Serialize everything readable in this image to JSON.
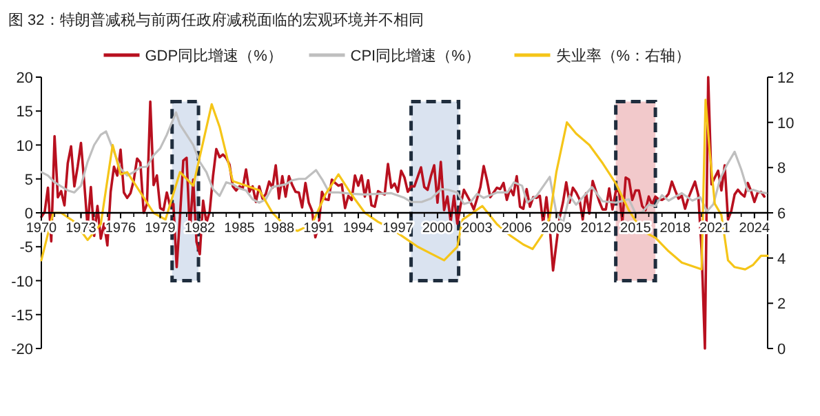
{
  "chart_data": {
    "type": "line",
    "title": "图 32：特朗普减税与前两任政府减税面临的宏观环境并不相同",
    "xlim": [
      1970,
      2025
    ],
    "xticks": [
      1970,
      1973,
      1976,
      1979,
      1982,
      1985,
      1988,
      1991,
      1994,
      1997,
      2000,
      2003,
      2006,
      2009,
      2012,
      2015,
      2018,
      2021,
      2024
    ],
    "ylim": [
      -20,
      20
    ],
    "yticks": [
      -20,
      -15,
      -10,
      -5,
      0,
      5,
      10,
      15,
      20
    ],
    "y2lim": [
      0,
      12
    ],
    "y2ticks": [
      0,
      2,
      4,
      6,
      8,
      10,
      12
    ],
    "legend": "top",
    "marker": "none",
    "line_style": "solid",
    "bands": [
      {
        "axis": "x",
        "from": 1979.9,
        "to": 1981.9,
        "color": "#dae3f0"
      },
      {
        "axis": "x",
        "from": 1998.0,
        "to": 2001.6,
        "color": "#dae3f0"
      },
      {
        "axis": "x",
        "from": 2013.5,
        "to": 2016.5,
        "color": "#f2c9cb"
      }
    ],
    "series": [
      {
        "name": "GDP同比增速（%）",
        "color": "#b8101f",
        "x": [
          1970,
          1970.25,
          1970.5,
          1970.75,
          1971,
          1971.25,
          1971.5,
          1971.75,
          1972,
          1972.25,
          1972.5,
          1972.75,
          1973,
          1973.25,
          1973.5,
          1973.75,
          1974,
          1974.25,
          1974.5,
          1974.75,
          1975,
          1975.25,
          1975.5,
          1975.75,
          1976,
          1976.25,
          1976.5,
          1976.75,
          1977,
          1977.25,
          1977.5,
          1977.75,
          1978,
          1978.25,
          1978.5,
          1978.75,
          1979,
          1979.25,
          1979.5,
          1979.75,
          1980,
          1980.25,
          1980.5,
          1980.75,
          1981,
          1981.25,
          1981.5,
          1981.75,
          1982,
          1982.25,
          1982.5,
          1982.75,
          1983,
          1983.25,
          1983.5,
          1983.75,
          1984,
          1984.25,
          1984.5,
          1984.75,
          1985,
          1985.25,
          1985.5,
          1985.75,
          1986,
          1986.25,
          1986.5,
          1986.75,
          1987,
          1987.25,
          1987.5,
          1987.75,
          1988,
          1988.25,
          1988.5,
          1988.75,
          1989,
          1989.25,
          1989.5,
          1989.75,
          1990,
          1990.25,
          1990.5,
          1990.75,
          1991,
          1991.25,
          1991.5,
          1991.75,
          1992,
          1992.25,
          1992.5,
          1992.75,
          1993,
          1993.25,
          1993.5,
          1993.75,
          1994,
          1994.25,
          1994.5,
          1994.75,
          1995,
          1995.25,
          1995.5,
          1995.75,
          1996,
          1996.25,
          1996.5,
          1996.75,
          1997,
          1997.25,
          1997.5,
          1997.75,
          1998,
          1998.25,
          1998.5,
          1998.75,
          1999,
          1999.25,
          1999.5,
          1999.75,
          2000,
          2000.25,
          2000.5,
          2000.75,
          2001,
          2001.25,
          2001.5,
          2001.75,
          2002,
          2002.25,
          2002.5,
          2002.75,
          2003,
          2003.25,
          2003.5,
          2003.75,
          2004,
          2004.25,
          2004.5,
          2004.75,
          2005,
          2005.25,
          2005.5,
          2005.75,
          2006,
          2006.25,
          2006.5,
          2006.75,
          2007,
          2007.25,
          2007.5,
          2007.75,
          2008,
          2008.25,
          2008.5,
          2008.75,
          2009,
          2009.25,
          2009.5,
          2009.75,
          2010,
          2010.25,
          2010.5,
          2010.75,
          2011,
          2011.25,
          2011.5,
          2011.75,
          2012,
          2012.25,
          2012.5,
          2012.75,
          2013,
          2013.25,
          2013.5,
          2013.75,
          2014,
          2014.25,
          2014.5,
          2014.75,
          2015,
          2015.25,
          2015.5,
          2015.75,
          2016,
          2016.25,
          2016.5,
          2016.75,
          2017,
          2017.25,
          2017.5,
          2017.75,
          2018,
          2018.25,
          2018.5,
          2018.75,
          2019,
          2019.25,
          2019.5,
          2019.75,
          2020,
          2020.25,
          2020.5,
          2020.75,
          2021,
          2021.25,
          2021.5,
          2021.75,
          2022,
          2022.25,
          2022.5,
          2022.75,
          2023,
          2023.25,
          2023.5,
          2023.75,
          2024,
          2024.25,
          2024.5,
          2024.75
        ],
        "values": [
          -0.6,
          0.1,
          3.7,
          -4.2,
          11.3,
          2.3,
          3.2,
          1.1,
          7.3,
          9.8,
          3.9,
          6.8,
          10.3,
          4.4,
          -2.1,
          3.8,
          -3.4,
          1.0,
          -3.8,
          -1.6,
          -4.8,
          3.1,
          6.8,
          5.5,
          9.3,
          3.0,
          2.2,
          2.9,
          4.8,
          8.0,
          7.4,
          0.0,
          1.3,
          16.4,
          4.1,
          5.5,
          0.7,
          0.4,
          3.0,
          1.0,
          1.3,
          -8.0,
          -0.5,
          7.7,
          8.1,
          -2.9,
          4.9,
          -4.3,
          -6.1,
          1.8,
          -1.5,
          0.2,
          5.4,
          9.4,
          8.2,
          8.6,
          8.1,
          7.1,
          3.9,
          3.3,
          3.9,
          3.6,
          6.4,
          3.1,
          3.9,
          1.6,
          3.9,
          2.1,
          2.8,
          4.6,
          3.7,
          7.0,
          2.1,
          5.4,
          2.4,
          5.4,
          4.1,
          3.1,
          3.0,
          0.8,
          4.4,
          1.5,
          0.3,
          -3.6,
          -1.9,
          3.1,
          2.0,
          1.9,
          4.9,
          4.4,
          4.0,
          4.2,
          0.7,
          2.5,
          1.9,
          5.5,
          4.0,
          5.5,
          2.4,
          4.8,
          1.1,
          0.9,
          3.2,
          2.9,
          2.7,
          7.2,
          3.7,
          4.3,
          3.1,
          6.2,
          5.2,
          3.1,
          3.9,
          3.9,
          5.3,
          6.7,
          3.8,
          3.4,
          5.4,
          7.0,
          1.5,
          7.5,
          0.4,
          2.4,
          -1.3,
          2.5,
          -1.6,
          1.1,
          3.4,
          2.5,
          1.6,
          0.5,
          2.1,
          3.8,
          6.9,
          4.8,
          2.3,
          3.0,
          3.7,
          3.5,
          4.4,
          1.9,
          3.6,
          2.6,
          5.4,
          0.9,
          0.6,
          3.5,
          0.9,
          2.3,
          2.2,
          2.5,
          -1.6,
          2.3,
          -2.1,
          -8.5,
          -4.6,
          -0.7,
          1.5,
          4.5,
          1.5,
          3.7,
          3.0,
          2.0,
          -1.0,
          2.9,
          -0.1,
          4.7,
          3.2,
          1.7,
          0.5,
          0.5,
          3.6,
          0.5,
          3.2,
          3.2,
          -1.4,
          5.2,
          4.9,
          1.9,
          3.3,
          3.3,
          1.0,
          0.4,
          2.4,
          1.2,
          2.4,
          2.0,
          1.9,
          2.2,
          2.8,
          4.6,
          3.3,
          2.1,
          2.5,
          0.6,
          2.2,
          3.4,
          4.6,
          2.6,
          -5.5,
          -20,
          20,
          4.2,
          5.2,
          6.2,
          3.3,
          7.0,
          -1.0,
          0.3,
          2.7,
          3.4,
          2.8,
          2.4,
          4.4,
          3.2,
          1.6,
          3.0,
          3.1,
          2.4
        ]
      },
      {
        "name": "CPI同比增速（%）",
        "color": "#bfbfbf",
        "x": [
          1970,
          1970.5,
          1971,
          1972,
          1972.5,
          1973,
          1973.5,
          1974,
          1974.5,
          1974.9,
          1975.5,
          1976,
          1976.5,
          1977,
          1977.5,
          1978,
          1978.5,
          1979,
          1979.5,
          1980.2,
          1980.5,
          1981,
          1981.5,
          1982,
          1982.5,
          1983,
          1983.5,
          1984,
          1984.5,
          1985,
          1985.5,
          1986,
          1986.5,
          1987,
          1987.5,
          1988,
          1988.5,
          1989,
          1989.5,
          1990,
          1990.8,
          1991.3,
          1991.8,
          1992.5,
          1993.5,
          1994.5,
          1995.5,
          1996.5,
          1997.5,
          1998,
          1998.8,
          1999.5,
          2000.3,
          2000.8,
          2001.5,
          2002,
          2002.5,
          2003,
          2003.5,
          2004.5,
          2005.3,
          2005.8,
          2006.4,
          2006.8,
          2007.5,
          2008.5,
          2009,
          2009.5,
          2010,
          2010.5,
          2011.7,
          2012.5,
          2013.5,
          2014.5,
          2015,
          2015.5,
          2016,
          2016.5,
          2017,
          2017.5,
          2018.5,
          2019.3,
          2019.9,
          2020.4,
          2020.9,
          2021.4,
          2021.9,
          2022.5,
          2023,
          2023.5,
          2023.9,
          2024.5,
          2024.9
        ],
        "values": [
          6.0,
          5.5,
          4.5,
          3.3,
          3.0,
          4.0,
          7.5,
          10.0,
          11.5,
          12.0,
          9.0,
          6.5,
          5.5,
          6.0,
          6.7,
          6.8,
          8.5,
          9.5,
          11.5,
          14.8,
          13.0,
          11.5,
          10.0,
          7.5,
          6.0,
          3.5,
          2.5,
          4.5,
          4.2,
          3.6,
          3.3,
          2.0,
          1.5,
          2.0,
          3.8,
          4.0,
          4.2,
          4.8,
          5.0,
          5.0,
          6.3,
          4.8,
          3.0,
          3.0,
          2.8,
          2.7,
          2.8,
          2.9,
          2.2,
          1.6,
          1.6,
          2.1,
          3.5,
          3.4,
          3.0,
          1.3,
          1.6,
          2.8,
          2.2,
          3.0,
          3.0,
          4.5,
          4.0,
          1.5,
          2.5,
          5.3,
          0.0,
          -1.5,
          2.5,
          1.2,
          3.8,
          1.7,
          1.5,
          2.0,
          -0.1,
          0.1,
          1.2,
          1.0,
          2.6,
          1.8,
          2.9,
          1.8,
          2.3,
          0.2,
          1.3,
          5.0,
          7.0,
          9.0,
          6.4,
          3.2,
          3.4,
          3.0,
          2.9
        ]
      },
      {
        "name": "失业率（%：右轴）",
        "color": "#f5c518",
        "axis": "y2",
        "x": [
          1970,
          1970.9,
          1971.5,
          1972.5,
          1973.5,
          1974.5,
          1975.4,
          1976,
          1976.5,
          1977.5,
          1978.5,
          1979.4,
          1980.5,
          1981.5,
          1982.9,
          1983.5,
          1984.5,
          1985.5,
          1986.5,
          1987.5,
          1988.5,
          1989.4,
          1990.5,
          1991.5,
          1992.5,
          1993.5,
          1994.5,
          1995.5,
          1996.5,
          1997.5,
          1998.5,
          1999.5,
          2000.5,
          2001.5,
          2001.9,
          2003.4,
          2004.5,
          2005.5,
          2006.5,
          2007.2,
          2007.9,
          2008.5,
          2009,
          2009.8,
          2010.5,
          2011.5,
          2012.5,
          2013.5,
          2014.5,
          2015.5,
          2016.5,
          2017.5,
          2018.5,
          2019.5,
          2020,
          2020.3,
          2020.6,
          2021,
          2021.5,
          2022,
          2022.5,
          2023.3,
          2023.9,
          2024.5,
          2025
        ],
        "values": [
          3.9,
          6.0,
          6.0,
          5.6,
          4.8,
          5.5,
          9.0,
          7.7,
          7.8,
          6.9,
          6.0,
          5.7,
          7.8,
          7.2,
          10.8,
          9.8,
          7.4,
          7.2,
          7.0,
          6.0,
          5.4,
          5.2,
          5.5,
          6.8,
          7.7,
          6.8,
          6.0,
          5.6,
          5.3,
          4.9,
          4.5,
          4.2,
          3.9,
          4.5,
          5.7,
          6.3,
          5.5,
          5.0,
          4.6,
          4.4,
          5.0,
          5.8,
          7.8,
          10.0,
          9.5,
          9.0,
          8.2,
          7.3,
          6.1,
          5.2,
          4.9,
          4.3,
          3.8,
          3.6,
          3.5,
          11.0,
          8.8,
          6.4,
          5.9,
          3.9,
          3.6,
          3.5,
          3.7,
          4.1,
          4.1
        ]
      }
    ]
  }
}
